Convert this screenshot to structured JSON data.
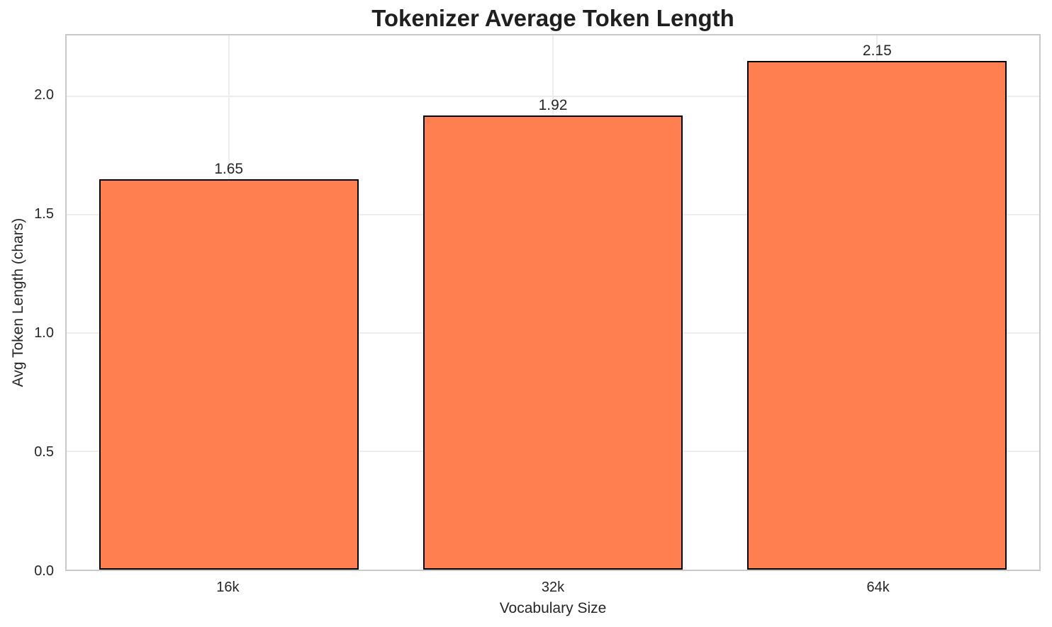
{
  "chart_data": {
    "type": "bar",
    "title": "Tokenizer Average Token Length",
    "xlabel": "Vocabulary Size",
    "ylabel": "Avg Token Length (chars)",
    "categories": [
      "16k",
      "32k",
      "64k"
    ],
    "values": [
      1.65,
      1.92,
      2.15
    ],
    "bar_labels": [
      "1.65",
      "1.92",
      "2.15"
    ],
    "yticks": [
      0.0,
      0.5,
      1.0,
      1.5,
      2.0
    ],
    "ytick_labels": [
      "0.0",
      "0.5",
      "1.0",
      "1.5",
      "2.0"
    ],
    "ylim": [
      0,
      2.2575
    ],
    "grid": true,
    "legend_position": "none",
    "bar_width_fraction": 0.8,
    "colors": {
      "bar_fill": "#FF7F50",
      "bar_edge": "#000000",
      "grid": "#ededed",
      "spine": "#c9c9c9",
      "text": "#262626",
      "background": "#ffffff"
    }
  }
}
